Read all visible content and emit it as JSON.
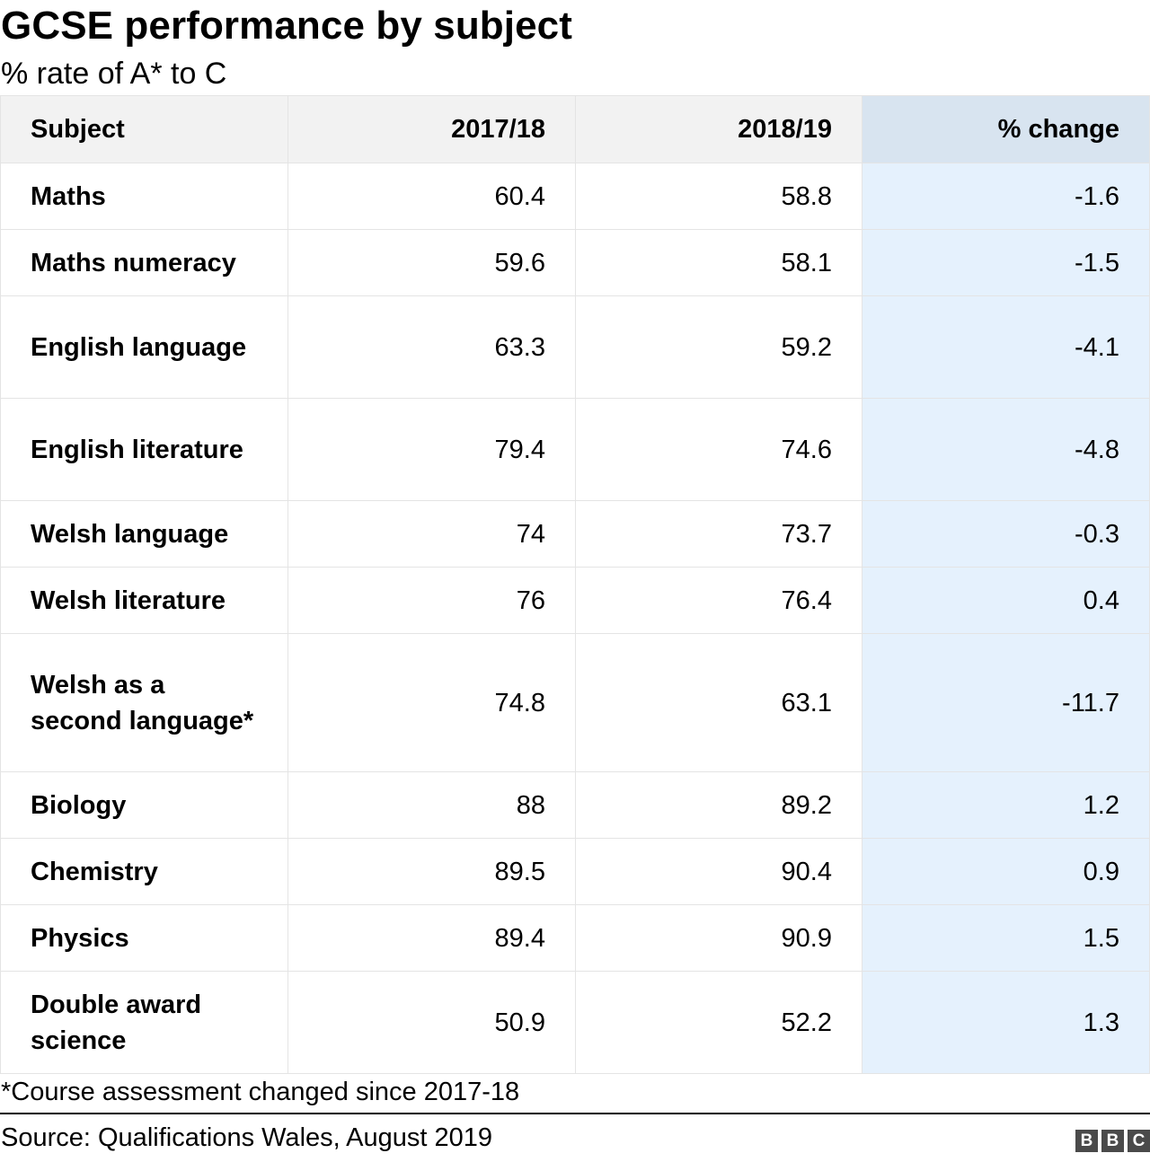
{
  "title": "GCSE performance by subject",
  "subtitle": "% rate of A* to C",
  "footnote": "*Course assessment changed since 2017-18",
  "source": "Source: Qualifications Wales, August 2019",
  "logo": [
    "B",
    "B",
    "C"
  ],
  "colors": {
    "header_bg": "#f2f2f2",
    "change_header_bg": "#d8e4f0",
    "change_col_bg": "#e5f1fd",
    "border": "#e4e4e4",
    "logo_bg": "#4a4a4a"
  },
  "chart_data": {
    "type": "table",
    "title": "GCSE performance by subject",
    "subtitle": "% rate of A* to C",
    "columns": [
      "Subject",
      "2017/18",
      "2018/19",
      "% change"
    ],
    "rows": [
      [
        "Maths",
        "60.4",
        "58.8",
        "-1.6"
      ],
      [
        "Maths numeracy",
        "59.6",
        "58.1",
        "-1.5"
      ],
      [
        "English language",
        "63.3",
        "59.2",
        "-4.1"
      ],
      [
        "English literature",
        "79.4",
        "74.6",
        "-4.8"
      ],
      [
        "Welsh language",
        "74",
        "73.7",
        "-0.3"
      ],
      [
        "Welsh literature",
        "76",
        "76.4",
        "0.4"
      ],
      [
        "Welsh as a second language*",
        "74.8",
        "63.1",
        "-11.7"
      ],
      [
        "Biology",
        "88",
        "89.2",
        "1.2"
      ],
      [
        "Chemistry",
        "89.5",
        "90.4",
        "0.9"
      ],
      [
        "Physics",
        "89.4",
        "90.9",
        "1.5"
      ],
      [
        "Double award science",
        "50.9",
        "52.2",
        "1.3"
      ]
    ]
  }
}
